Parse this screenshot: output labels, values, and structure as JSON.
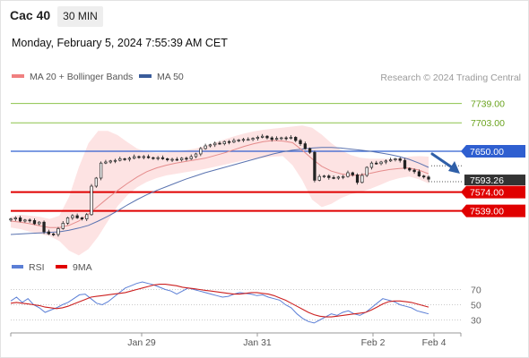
{
  "header": {
    "instrument": "Cac 40",
    "timeframe": "30 MIN"
  },
  "datetime": "Monday, February 5, 2024 7:55:39 AM CET",
  "credit": "Research © 2024 Trading Central",
  "legend_price": [
    {
      "label": "MA 20 + Bollinger Bands",
      "color": "#f08080"
    },
    {
      "label": "MA 50",
      "color": "#3a5c9a"
    }
  ],
  "legend_rsi": [
    {
      "label": "RSI",
      "color": "#5b7fd6"
    },
    {
      "label": "9MA",
      "color": "#e00000"
    }
  ],
  "colors": {
    "resistance": "#8bc34a",
    "pivot": "#2f5fd0",
    "support": "#e00000",
    "current": "#333333",
    "arrow": "#2f5fa8"
  },
  "chart_data": [
    {
      "type": "candlestick",
      "x_tick_labels": [
        "Jan 29",
        "Jan 31",
        "Feb 2",
        "Feb 4"
      ],
      "ylim": [
        7460,
        7765
      ],
      "levels": [
        {
          "value": 7739.0,
          "label": "7739.00",
          "kind": "resistance"
        },
        {
          "value": 7703.0,
          "label": "7703.00",
          "kind": "resistance"
        },
        {
          "value": 7650.0,
          "label": "7650.00",
          "kind": "pivot"
        },
        {
          "value": 7593.26,
          "label": "7593.26",
          "kind": "current"
        },
        {
          "value": 7574.0,
          "label": "7574.00",
          "kind": "support"
        },
        {
          "value": 7539.0,
          "label": "7539.00",
          "kind": "support"
        }
      ],
      "series": [
        {
          "name": "Cac 40",
          "close": [
            7524,
            7526,
            7520,
            7522,
            7521,
            7515,
            7518,
            7500,
            7496,
            7495,
            7506,
            7516,
            7526,
            7530,
            7526,
            7524,
            7532,
            7585,
            7600,
            7628,
            7630,
            7632,
            7633,
            7636,
            7635,
            7637,
            7640,
            7639,
            7640,
            7638,
            7637,
            7638,
            7636,
            7634,
            7635,
            7634,
            7637,
            7636,
            7640,
            7645,
            7655,
            7660,
            7662,
            7665,
            7664,
            7668,
            7667,
            7670,
            7671,
            7672,
            7672,
            7674,
            7676,
            7678,
            7675,
            7672,
            7674,
            7675,
            7674,
            7676,
            7670,
            7664,
            7655,
            7648,
            7596,
            7603,
            7604,
            7601,
            7600,
            7602,
            7603,
            7610,
            7606,
            7592,
            7605,
            7620,
            7628,
            7627,
            7630,
            7632,
            7634,
            7636,
            7633,
            7618,
            7615,
            7612,
            7604,
            7602,
            7598
          ]
        },
        {
          "name": "MA 20",
          "values": [
            7520,
            7518,
            7515,
            7511,
            7508,
            7508,
            7512,
            7520,
            7533,
            7548,
            7563,
            7577,
            7590,
            7602,
            7612,
            7619,
            7624,
            7628,
            7631,
            7634,
            7637,
            7642,
            7647,
            7653,
            7659,
            7664,
            7668,
            7670,
            7669,
            7666,
            7652,
            7636,
            7622,
            7613,
            7608,
            7605,
            7606,
            7609,
            7613,
            7616,
            7618,
            7619,
            7615,
            7608
          ]
        },
        {
          "name": "Upper Bollinger Band",
          "values": [
            7528,
            7532,
            7530,
            7528,
            7524,
            7530,
            7565,
            7620,
            7665,
            7688,
            7688,
            7680,
            7667,
            7655,
            7649,
            7647,
            7648,
            7650,
            7652,
            7655,
            7660,
            7666,
            7672,
            7678,
            7683,
            7687,
            7690,
            7692,
            7694,
            7696,
            7698,
            7694,
            7681,
            7665,
            7652,
            7643,
            7638,
            7636,
            7636,
            7636,
            7637,
            7640,
            7641,
            7640
          ]
        },
        {
          "name": "Lower Bollinger Band",
          "values": [
            7508,
            7505,
            7500,
            7496,
            7492,
            7483,
            7465,
            7456,
            7468,
            7491,
            7520,
            7548,
            7568,
            7583,
            7593,
            7600,
            7605,
            7608,
            7611,
            7614,
            7617,
            7621,
            7625,
            7629,
            7633,
            7636,
            7638,
            7640,
            7641,
            7624,
            7596,
            7560,
            7546,
            7552,
            7563,
            7570,
            7574,
            7580,
            7587,
            7595,
            7600,
            7603,
            7598,
            7590
          ]
        },
        {
          "name": "MA 50",
          "values": [
            7495,
            7496,
            7497,
            7498,
            7499,
            7500,
            7503,
            7507,
            7512,
            7520,
            7529,
            7539,
            7550,
            7560,
            7569,
            7577,
            7584,
            7591,
            7598,
            7604,
            7610,
            7615,
            7620,
            7625,
            7630,
            7635,
            7640,
            7645,
            7649,
            7652,
            7654,
            7656,
            7657,
            7657,
            7656,
            7654,
            7652,
            7650,
            7647,
            7644,
            7640,
            7635,
            7628,
            7620
          ]
        }
      ]
    },
    {
      "type": "line",
      "ylim": [
        20,
        80
      ],
      "y_tick_labels": [
        "70",
        "50",
        "30"
      ],
      "y_ticks": [
        70,
        50,
        30
      ],
      "series": [
        {
          "name": "RSI",
          "values": [
            55,
            60,
            53,
            58,
            50,
            46,
            40,
            43,
            46,
            50,
            53,
            58,
            63,
            64,
            58,
            52,
            50,
            54,
            60,
            66,
            72,
            75,
            78,
            80,
            78,
            76,
            73,
            70,
            68,
            64,
            68,
            72,
            70,
            68,
            66,
            64,
            62,
            60,
            61,
            64,
            66,
            65,
            64,
            62,
            63,
            60,
            58,
            56,
            50,
            46,
            38,
            32,
            28,
            26,
            30,
            34,
            38,
            36,
            40,
            42,
            38,
            36,
            40,
            46,
            52,
            58,
            56,
            54,
            50,
            48,
            46,
            42,
            40,
            38
          ]
        },
        {
          "name": "9MA",
          "values": [
            52,
            53,
            52,
            51,
            50,
            49,
            47,
            46,
            45,
            46,
            48,
            51,
            54,
            57,
            60,
            61,
            62,
            63,
            64,
            65,
            66,
            68,
            70,
            72,
            74,
            76,
            77,
            77,
            76,
            75,
            73,
            72,
            71,
            70,
            69,
            68,
            67,
            66,
            65,
            64,
            64,
            65,
            66,
            66,
            65,
            64,
            62,
            59,
            56,
            52,
            48,
            44,
            40,
            37,
            35,
            34,
            34,
            35,
            36,
            37,
            38,
            39,
            40,
            43,
            47,
            51,
            54,
            55,
            55,
            54,
            53,
            51,
            49,
            47
          ]
        }
      ]
    }
  ]
}
